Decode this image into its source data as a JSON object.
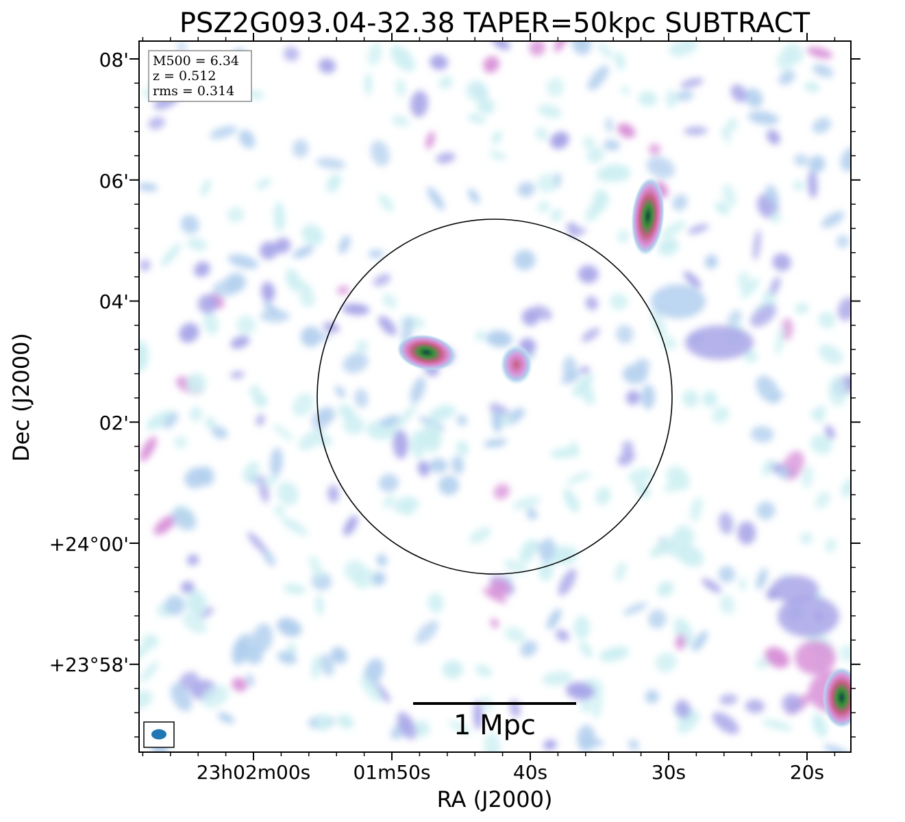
{
  "chart_data": {
    "type": "heatmap",
    "title": "PSZ2G093.04-32.38 TAPER=50kpc SUBTRACT",
    "xlabel": "RA (J2000)",
    "ylabel": "Dec (J2000)",
    "x_ticks": [
      "23h02m00s",
      "01m50s",
      "40s",
      "30s",
      "20s"
    ],
    "y_ticks": [
      "08'",
      "06'",
      "04'",
      "02'",
      "+24°00'",
      "+23°58'"
    ],
    "info_box": [
      "M500 = 6.34",
      "z = 0.512",
      "rms = 0.314"
    ],
    "scale_bar_label": "1 Mpc",
    "colormap": [
      "#ffffff",
      "#cdeff2",
      "#b2cfee",
      "#a8a5e8",
      "#d891d8",
      "#c85f86",
      "#3f8f3a",
      "#0b4a3f"
    ],
    "circle_color": "#000000",
    "beam_color": "#1f77b4",
    "sources": [
      {
        "ra_s": 47.5,
        "dec_arcmin": 3.15,
        "peak": 7,
        "note": "central bright source"
      },
      {
        "ra_s": 41.0,
        "dec_arcmin": 2.95,
        "peak": 5,
        "note": "central secondary source"
      },
      {
        "ra_s": 31.5,
        "dec_arcmin": 5.4,
        "peak": 8,
        "note": "north-east compact source"
      },
      {
        "ra_s": 17.5,
        "dec_arcmin": -2.55,
        "peak": 8,
        "note": "south-east edge source"
      }
    ]
  }
}
